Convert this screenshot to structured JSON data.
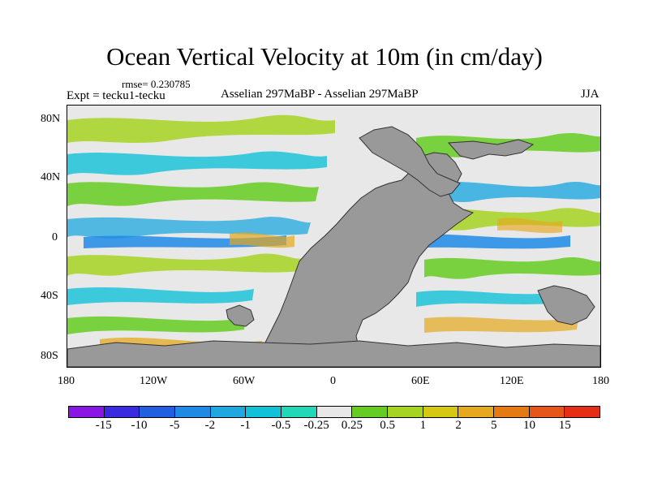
{
  "figure": {
    "title": "Ocean Vertical Velocity at 10m (in cm/day)",
    "rmse": "rmse= 0.230785",
    "experiment": "Expt = tecku1-tecku",
    "period": "Asselian 297MaBP - Asselian 297MaBP",
    "season": "JJA"
  },
  "axes": {
    "lat_labels": [
      "80N",
      "40N",
      "0",
      "40S",
      "80S"
    ],
    "lon_labels": [
      "180",
      "120W",
      "60W",
      "0",
      "60E",
      "120E",
      "180"
    ]
  },
  "colorbar": {
    "labels": [
      "-15",
      "-10",
      "-5",
      "-2",
      "-1",
      "-0.5",
      "-0.25",
      "0.25",
      "0.5",
      "1",
      "2",
      "5",
      "10",
      "15"
    ],
    "colors": [
      "#8a16e6",
      "#3a2ae0",
      "#1f5fe0",
      "#1f8ae6",
      "#1fa8e0",
      "#12c0d8",
      "#22d8b8",
      "#e8e8e8",
      "#66cc22",
      "#a6d422",
      "#d6c812",
      "#e6a81e",
      "#e67a12",
      "#e6561a",
      "#e62e16"
    ]
  },
  "colors": {
    "land": "#999999",
    "background": "#ffffff"
  }
}
